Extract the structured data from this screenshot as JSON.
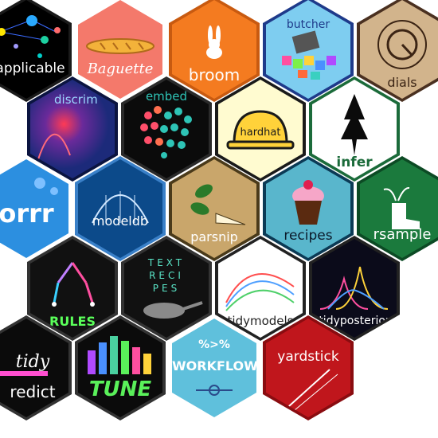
{
  "stickers": [
    {
      "id": "applicable",
      "name": "applicable",
      "color": "#000000",
      "border": "#1a1a1a",
      "text_color": "#ffffff",
      "icon": "network-dots-icon"
    },
    {
      "id": "baguette",
      "name": "Baguette",
      "color": "#f4796b",
      "border": "#ffffff",
      "text_color": "#ffffff",
      "icon": "baguette-bread-icon"
    },
    {
      "id": "broom",
      "name": "broom",
      "color": "#f47b20",
      "border": "#c85a10",
      "text_color": "#ffffff",
      "icon": "broom-bunny-icon"
    },
    {
      "id": "butcher",
      "name": "butcher",
      "color": "#7ecdf0",
      "border": "#1e3a8a",
      "text_color": "#1e3a8a",
      "icon": "butcher-cleaver-icon"
    },
    {
      "id": "dials",
      "name": "dials",
      "color": "#d2b48c",
      "border": "#4a3020",
      "text_color": "#3b2414",
      "icon": "dial-knob-icon"
    },
    {
      "id": "discrim",
      "name": "discrim",
      "color": "#1c2a7a",
      "border": "#0b1440",
      "text_color": "#9ad7ff",
      "icon": "density-curve-icon"
    },
    {
      "id": "embed",
      "name": "embed",
      "color": "#0b0b0b",
      "border": "#2a2a2a",
      "text_color": "#2ec4b6",
      "icon": "dot-cloud-icon"
    },
    {
      "id": "hardhat",
      "name": "hardhat",
      "color": "#fffbd0",
      "border": "#1a1a1a",
      "text_color": "#1a1a1a",
      "icon": "hard-hat-icon"
    },
    {
      "id": "infer",
      "name": "infer",
      "color": "#ffffff",
      "border": "#1b6b3a",
      "text_color": "#1b6b3a",
      "icon": "tree-icon"
    },
    {
      "id": "corrr",
      "name": "orrr",
      "color": "#2c8fe0",
      "border": "#ffffff",
      "text_color": "#ffffff",
      "icon": "circles-icon"
    },
    {
      "id": "modeldb",
      "name": "modeldb",
      "color": "#0c4a8a",
      "border": "#3a80c8",
      "text_color": "#ffffff",
      "icon": "database-curve-icon"
    },
    {
      "id": "parsnip",
      "name": "parsnip",
      "color": "#c9a66b",
      "border": "#4a3a1a",
      "text_color": "#ffffff",
      "icon": "parsnip-icon"
    },
    {
      "id": "recipes",
      "name": "recipes",
      "color": "#59b6cc",
      "border": "#0b3a55",
      "text_color": "#0b1a2a",
      "icon": "cupcake-icon"
    },
    {
      "id": "rsample",
      "name": "rsample",
      "color": "#1b7a3d",
      "border": "#0c4a24",
      "text_color": "#ffffff",
      "icon": "boot-plant-icon"
    },
    {
      "id": "rules",
      "name": "RULES",
      "color": "#111111",
      "border": "#333333",
      "text_color": "#5aff5a",
      "icon": "decision-tree-icon"
    },
    {
      "id": "textrecipes",
      "name": "TEXT RECIPES",
      "color": "#111111",
      "border": "#333333",
      "text_color": "#5ae6c8",
      "icon": "frying-pan-icon"
    },
    {
      "id": "tidymodels",
      "name": "tidymodels",
      "color": "#ffffff",
      "border": "#222222",
      "text_color": "#222222",
      "icon": "curves-icon"
    },
    {
      "id": "tidyposterior",
      "name": "tidyposterior",
      "color": "#0b0b1a",
      "border": "#222222",
      "text_color": "#ffffff",
      "icon": "posterior-curves-icon"
    },
    {
      "id": "tidypredict",
      "name": "tidy predict",
      "color": "#0b0b0b",
      "border": "#333333",
      "text_color": "#ffffff",
      "icon": "pink-bar-icon"
    },
    {
      "id": "tune",
      "name": "TUNE",
      "color": "#0b0b0b",
      "border": "#333333",
      "text_color": "#5af05a",
      "icon": "equalizer-icon"
    },
    {
      "id": "workflows",
      "name": "WORKFLOWS",
      "color": "#5fc0dc",
      "border": "#ffffff",
      "text_color": "#ffffff",
      "icon": "workflow-arrows-icon"
    },
    {
      "id": "yardstick",
      "name": "yardstick",
      "color": "#c0161c",
      "border": "#8a0c10",
      "text_color": "#ffffff",
      "icon": "ruler-icon"
    }
  ],
  "labels": {
    "tidypredict_line1": "tidy",
    "tidypredict_line2": "redict",
    "textrecipes_l1": "TEXT",
    "textrecipes_l2": "RECI",
    "textrecipes_l3": "PES",
    "workflows_top": "%>%"
  }
}
